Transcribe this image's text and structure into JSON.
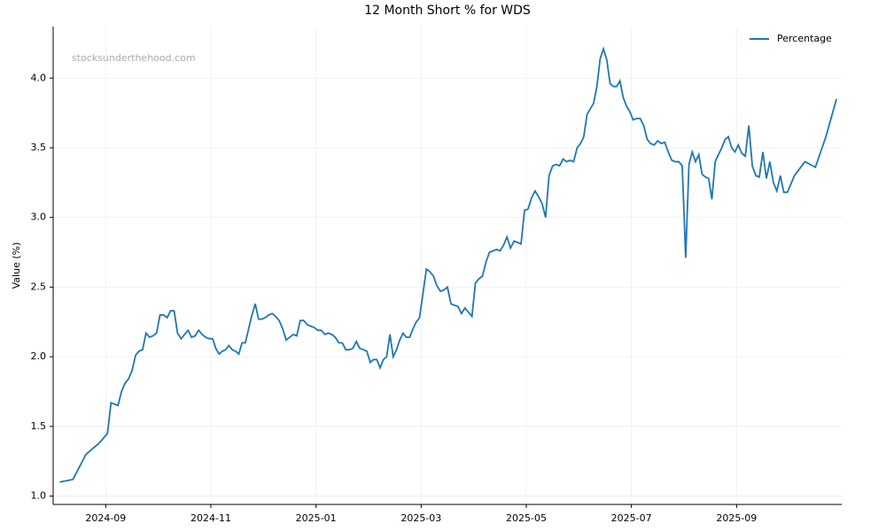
{
  "chart_data": {
    "type": "line",
    "title": "12 Month Short % for WDS",
    "ylabel": "Value (%)",
    "watermark": "stocksunderthehood.com",
    "x": [
      "2024-08",
      "2024-08",
      "2024-08",
      "2024-08",
      "2024-09",
      "2024-09",
      "2024-09",
      "2024-09",
      "2024-09",
      "2024-09",
      "2024-09",
      "2024-09",
      "2024-09",
      "2024-09",
      "2024-09",
      "2024-09",
      "2024-09",
      "2024-09",
      "2024-09",
      "2024-10",
      "2024-10",
      "2024-10",
      "2024-10",
      "2024-10",
      "2024-10",
      "2024-10",
      "2024-10",
      "2024-10",
      "2024-10",
      "2024-10",
      "2024-10",
      "2024-10",
      "2024-10",
      "2024-10",
      "2024-11",
      "2024-11",
      "2024-11",
      "2024-11",
      "2024-11",
      "2024-11",
      "2024-11",
      "2024-11",
      "2024-11",
      "2024-11",
      "2024-11",
      "2024-11",
      "2024-11",
      "2024-11",
      "2024-11",
      "2024-11",
      "2024-12",
      "2024-12",
      "2024-12",
      "2024-12",
      "2024-12",
      "2024-12",
      "2024-12",
      "2024-12",
      "2024-12",
      "2024-12",
      "2024-12",
      "2024-12",
      "2024-12",
      "2024-12",
      "2024-12",
      "2025-01",
      "2025-01",
      "2025-01",
      "2025-01",
      "2025-01",
      "2025-01",
      "2025-01",
      "2025-01",
      "2025-01",
      "2025-01",
      "2025-01",
      "2025-01",
      "2025-01",
      "2025-01",
      "2025-01",
      "2025-02",
      "2025-02",
      "2025-02",
      "2025-02",
      "2025-02",
      "2025-02",
      "2025-02",
      "2025-02",
      "2025-02",
      "2025-02",
      "2025-02",
      "2025-02",
      "2025-02",
      "2025-02",
      "2025-02",
      "2025-02",
      "2025-03",
      "2025-03",
      "2025-03",
      "2025-03",
      "2025-03",
      "2025-03",
      "2025-03",
      "2025-03",
      "2025-03",
      "2025-03",
      "2025-03",
      "2025-03",
      "2025-03",
      "2025-03",
      "2025-03",
      "2025-04",
      "2025-04",
      "2025-04",
      "2025-04",
      "2025-04",
      "2025-04",
      "2025-04",
      "2025-04",
      "2025-04",
      "2025-04",
      "2025-04",
      "2025-04",
      "2025-04",
      "2025-04",
      "2025-04",
      "2025-05",
      "2025-05",
      "2025-05",
      "2025-05",
      "2025-05",
      "2025-05",
      "2025-05",
      "2025-05",
      "2025-05",
      "2025-05",
      "2025-05",
      "2025-05",
      "2025-05",
      "2025-05",
      "2025-05",
      "2025-06",
      "2025-06",
      "2025-06",
      "2025-06",
      "2025-06",
      "2025-06",
      "2025-06",
      "2025-06",
      "2025-06",
      "2025-06",
      "2025-06",
      "2025-06",
      "2025-06",
      "2025-06",
      "2025-06",
      "2025-06",
      "2025-07",
      "2025-07",
      "2025-07",
      "2025-07",
      "2025-07",
      "2025-07",
      "2025-07",
      "2025-07",
      "2025-07",
      "2025-07",
      "2025-07",
      "2025-07",
      "2025-07",
      "2025-07",
      "2025-07",
      "2025-08",
      "2025-08",
      "2025-08",
      "2025-08",
      "2025-08",
      "2025-08",
      "2025-08",
      "2025-08",
      "2025-08",
      "2025-08",
      "2025-08",
      "2025-08",
      "2025-08",
      "2025-08",
      "2025-08",
      "2025-08",
      "2025-09",
      "2025-09",
      "2025-09",
      "2025-09",
      "2025-09",
      "2025-09",
      "2025-09",
      "2025-09",
      "2025-09",
      "2025-09",
      "2025-09",
      "2025-09",
      "2025-09",
      "2025-09",
      "2025-09",
      "2025-10",
      "2025-10",
      "2025-10",
      "2025-10",
      "2025-10"
    ],
    "series": [
      {
        "name": "Percentage",
        "color": "#1f77b4",
        "values": [
          1.1,
          1.12,
          1.3,
          1.38,
          1.45,
          1.67,
          1.66,
          1.65,
          1.75,
          1.81,
          1.84,
          1.9,
          2.01,
          2.04,
          2.05,
          2.17,
          2.14,
          2.15,
          2.17,
          2.3,
          2.3,
          2.28,
          2.33,
          2.33,
          2.17,
          2.13,
          2.16,
          2.19,
          2.14,
          2.15,
          2.19,
          2.16,
          2.14,
          2.13,
          2.13,
          2.06,
          2.02,
          2.04,
          2.05,
          2.08,
          2.05,
          2.04,
          2.02,
          2.1,
          2.1,
          2.2,
          2.3,
          2.38,
          2.27,
          2.27,
          2.28,
          2.3,
          2.31,
          2.29,
          2.26,
          2.2,
          2.12,
          2.14,
          2.16,
          2.15,
          2.26,
          2.26,
          2.23,
          2.22,
          2.21,
          2.19,
          2.19,
          2.16,
          2.17,
          2.16,
          2.14,
          2.1,
          2.1,
          2.05,
          2.05,
          2.06,
          2.11,
          2.06,
          2.05,
          2.04,
          1.96,
          1.98,
          1.98,
          1.92,
          1.98,
          2.0,
          2.16,
          2.0,
          2.05,
          2.12,
          2.17,
          2.14,
          2.14,
          2.2,
          2.25,
          2.28,
          2.45,
          2.63,
          2.61,
          2.58,
          2.51,
          2.47,
          2.48,
          2.5,
          2.38,
          2.37,
          2.36,
          2.31,
          2.35,
          2.32,
          2.29,
          2.53,
          2.56,
          2.58,
          2.68,
          2.75,
          2.76,
          2.77,
          2.76,
          2.8,
          2.86,
          2.78,
          2.83,
          2.82,
          2.81,
          3.05,
          3.06,
          3.14,
          3.19,
          3.15,
          3.1,
          3.0,
          3.3,
          3.37,
          3.38,
          3.37,
          3.42,
          3.4,
          3.41,
          3.4,
          3.5,
          3.53,
          3.58,
          3.74,
          3.78,
          3.82,
          3.94,
          4.14,
          4.21,
          4.13,
          3.96,
          3.94,
          3.94,
          3.98,
          3.86,
          3.8,
          3.76,
          3.7,
          3.71,
          3.71,
          3.66,
          3.56,
          3.53,
          3.52,
          3.55,
          3.53,
          3.54,
          3.47,
          3.41,
          3.4,
          3.4,
          3.37,
          2.71,
          3.38,
          3.47,
          3.4,
          3.45,
          3.31,
          3.29,
          3.28,
          3.13,
          3.4,
          3.45,
          3.5,
          3.56,
          3.58,
          3.5,
          3.47,
          3.52,
          3.46,
          3.44,
          3.66,
          3.37,
          3.3,
          3.29,
          3.47,
          3.28,
          3.4,
          3.25,
          3.19,
          3.3,
          3.18,
          3.18,
          3.3,
          3.4,
          3.36,
          3.58,
          3.85
        ]
      }
    ],
    "xlim": [
      "2024-08",
      "2025-11"
    ],
    "xticks": [
      "2024-09",
      "2024-11",
      "2025-01",
      "2025-03",
      "2025-05",
      "2025-07",
      "2025-09"
    ],
    "ylim": [
      0.94,
      4.37
    ],
    "yticks": [
      {
        "value": 1,
        "label": "1.0"
      },
      1.5,
      {
        "value": 2,
        "label": "2.0"
      },
      2.5,
      {
        "value": 3,
        "label": "3.0"
      },
      3.5,
      {
        "value": 4,
        "label": "4.0"
      }
    ],
    "grid": true,
    "legend": "upper right"
  }
}
